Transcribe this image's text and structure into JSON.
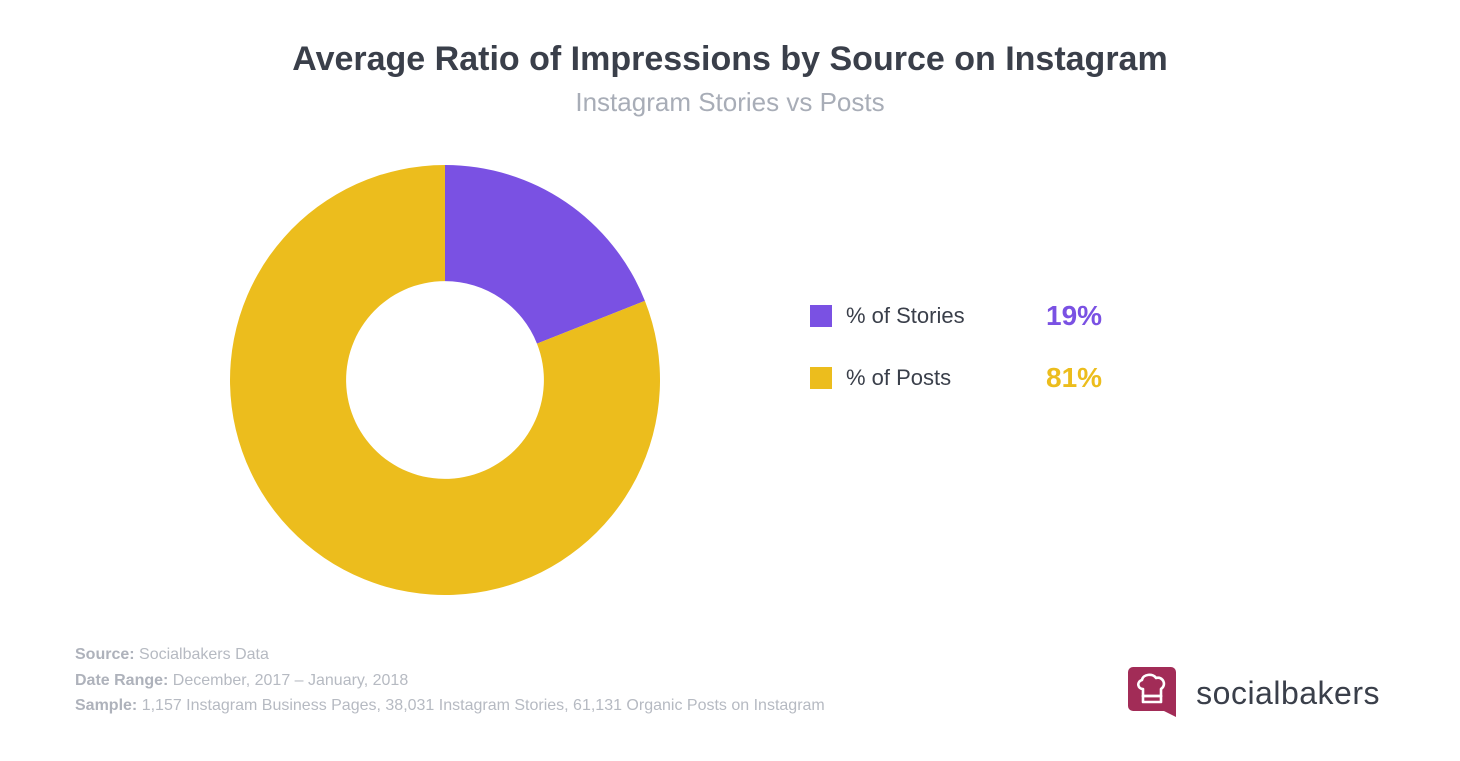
{
  "header": {
    "title": "Average Ratio of Impressions by Source on Instagram",
    "subtitle": "Instagram Stories vs Posts"
  },
  "chart": {
    "type": "donut",
    "background_color": "#ffffff",
    "inner_radius_ratio": 0.46,
    "start_angle_deg": 0,
    "slices": [
      {
        "label": "% of Stories",
        "value": 19,
        "display": "19%",
        "color": "#7a51e3"
      },
      {
        "label": "% of Posts",
        "value": 81,
        "display": "81%",
        "color": "#ecbd1d"
      }
    ]
  },
  "legend": {
    "items": [
      {
        "swatch": "#7a51e3",
        "label": "% of Stories",
        "value": "19%",
        "value_color": "#7a51e3"
      },
      {
        "swatch": "#ecbd1d",
        "label": "% of Posts",
        "value": "81%",
        "value_color": "#ecbd1d"
      }
    ],
    "label_fontsize": 22,
    "value_fontsize": 28,
    "swatch_size": 22
  },
  "footer": {
    "source_label": "Source:",
    "source_value": " Socialbakers Data",
    "date_label": "Date Range:",
    "date_value": " December, 2017 – January, 2018",
    "sample_label": "Sample:",
    "sample_value": " 1,157 Instagram Business Pages, 38,031 Instagram Stories, 61,131 Organic Posts on Instagram"
  },
  "brand": {
    "name": "socialbakers",
    "logo_bg": "#a22c57",
    "logo_fg": "#ffffff"
  }
}
